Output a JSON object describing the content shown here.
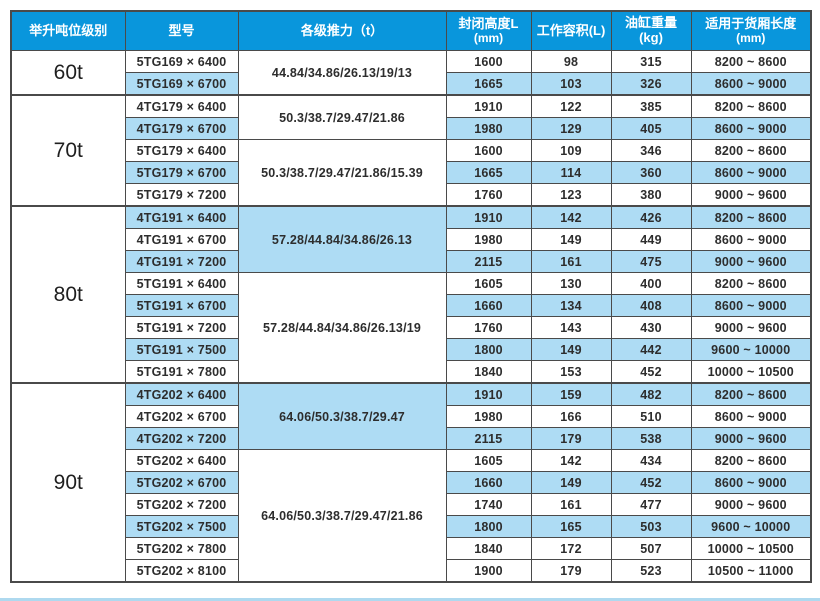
{
  "colors": {
    "header_bg": "#0996dc",
    "header_text": "#ffffff",
    "row_highlight_bg": "#aedcf4",
    "grid_border": "#4a4a4a",
    "body_text": "#2d2d2d",
    "bottom_rule": "#aed9ef"
  },
  "table": {
    "headers": [
      {
        "line1": "举升吨位级别",
        "line2": ""
      },
      {
        "line1": "型号",
        "line2": ""
      },
      {
        "line1": "各级推力（t）",
        "line2": ""
      },
      {
        "line1": "封闭高度L",
        "line2": "(mm)"
      },
      {
        "line1": "工作容积(L)",
        "line2": ""
      },
      {
        "line1": "油缸重量(kg)",
        "line2": ""
      },
      {
        "line1": "适用于货厢长度",
        "line2": "(mm)"
      }
    ],
    "sections": [
      {
        "tonnage": "60t",
        "groups": [
          {
            "thrust": "44.84/34.86/26.13/19/13",
            "thrust_highlight": false,
            "rows": [
              {
                "model": "5TG169 × 6400",
                "closed_height": "1600",
                "working_volume": "98",
                "cylinder_weight": "315",
                "box_length": "8200 ~ 8600",
                "highlight": false
              },
              {
                "model": "5TG169 × 6700",
                "closed_height": "1665",
                "working_volume": "103",
                "cylinder_weight": "326",
                "box_length": "8600 ~ 9000",
                "highlight": true
              }
            ]
          }
        ]
      },
      {
        "tonnage": "70t",
        "groups": [
          {
            "thrust": "50.3/38.7/29.47/21.86",
            "thrust_highlight": false,
            "rows": [
              {
                "model": "4TG179 × 6400",
                "closed_height": "1910",
                "working_volume": "122",
                "cylinder_weight": "385",
                "box_length": "8200 ~ 8600",
                "highlight": false
              },
              {
                "model": "4TG179 × 6700",
                "closed_height": "1980",
                "working_volume": "129",
                "cylinder_weight": "405",
                "box_length": "8600 ~ 9000",
                "highlight": true
              }
            ]
          },
          {
            "thrust": "50.3/38.7/29.47/21.86/15.39",
            "thrust_highlight": false,
            "rows": [
              {
                "model": "5TG179 × 6400",
                "closed_height": "1600",
                "working_volume": "109",
                "cylinder_weight": "346",
                "box_length": "8200 ~ 8600",
                "highlight": false
              },
              {
                "model": "5TG179 × 6700",
                "closed_height": "1665",
                "working_volume": "114",
                "cylinder_weight": "360",
                "box_length": "8600 ~ 9000",
                "highlight": true
              },
              {
                "model": "5TG179 × 7200",
                "closed_height": "1760",
                "working_volume": "123",
                "cylinder_weight": "380",
                "box_length": "9000 ~ 9600",
                "highlight": false
              }
            ]
          }
        ]
      },
      {
        "tonnage": "80t",
        "groups": [
          {
            "thrust": "57.28/44.84/34.86/26.13",
            "thrust_highlight": true,
            "rows": [
              {
                "model": "4TG191 × 6400",
                "closed_height": "1910",
                "working_volume": "142",
                "cylinder_weight": "426",
                "box_length": "8200 ~ 8600",
                "highlight": true
              },
              {
                "model": "4TG191 × 6700",
                "closed_height": "1980",
                "working_volume": "149",
                "cylinder_weight": "449",
                "box_length": "8600 ~ 9000",
                "highlight": false
              },
              {
                "model": "4TG191 × 7200",
                "closed_height": "2115",
                "working_volume": "161",
                "cylinder_weight": "475",
                "box_length": "9000 ~ 9600",
                "highlight": true
              }
            ]
          },
          {
            "thrust": "57.28/44.84/34.86/26.13/19",
            "thrust_highlight": false,
            "rows": [
              {
                "model": "5TG191 × 6400",
                "closed_height": "1605",
                "working_volume": "130",
                "cylinder_weight": "400",
                "box_length": "8200 ~ 8600",
                "highlight": false
              },
              {
                "model": "5TG191 × 6700",
                "closed_height": "1660",
                "working_volume": "134",
                "cylinder_weight": "408",
                "box_length": "8600 ~ 9000",
                "highlight": true
              },
              {
                "model": "5TG191 × 7200",
                "closed_height": "1760",
                "working_volume": "143",
                "cylinder_weight": "430",
                "box_length": "9000 ~ 9600",
                "highlight": false
              },
              {
                "model": "5TG191 × 7500",
                "closed_height": "1800",
                "working_volume": "149",
                "cylinder_weight": "442",
                "box_length": "9600 ~ 10000",
                "highlight": true
              },
              {
                "model": "5TG191 × 7800",
                "closed_height": "1840",
                "working_volume": "153",
                "cylinder_weight": "452",
                "box_length": "10000 ~ 10500",
                "highlight": false
              }
            ]
          }
        ]
      },
      {
        "tonnage": "90t",
        "groups": [
          {
            "thrust": "64.06/50.3/38.7/29.47",
            "thrust_highlight": true,
            "rows": [
              {
                "model": "4TG202 × 6400",
                "closed_height": "1910",
                "working_volume": "159",
                "cylinder_weight": "482",
                "box_length": "8200 ~ 8600",
                "highlight": true
              },
              {
                "model": "4TG202 × 6700",
                "closed_height": "1980",
                "working_volume": "166",
                "cylinder_weight": "510",
                "box_length": "8600 ~ 9000",
                "highlight": false
              },
              {
                "model": "4TG202 × 7200",
                "closed_height": "2115",
                "working_volume": "179",
                "cylinder_weight": "538",
                "box_length": "9000 ~ 9600",
                "highlight": true
              }
            ]
          },
          {
            "thrust": "64.06/50.3/38.7/29.47/21.86",
            "thrust_highlight": false,
            "rows": [
              {
                "model": "5TG202 × 6400",
                "closed_height": "1605",
                "working_volume": "142",
                "cylinder_weight": "434",
                "box_length": "8200 ~ 8600",
                "highlight": false
              },
              {
                "model": "5TG202 × 6700",
                "closed_height": "1660",
                "working_volume": "149",
                "cylinder_weight": "452",
                "box_length": "8600 ~ 9000",
                "highlight": true
              },
              {
                "model": "5TG202 × 7200",
                "closed_height": "1740",
                "working_volume": "161",
                "cylinder_weight": "477",
                "box_length": "9000 ~ 9600",
                "highlight": false
              },
              {
                "model": "5TG202 × 7500",
                "closed_height": "1800",
                "working_volume": "165",
                "cylinder_weight": "503",
                "box_length": "9600 ~ 10000",
                "highlight": true
              },
              {
                "model": "5TG202 × 7800",
                "closed_height": "1840",
                "working_volume": "172",
                "cylinder_weight": "507",
                "box_length": "10000 ~ 10500",
                "highlight": false
              },
              {
                "model": "5TG202 × 8100",
                "closed_height": "1900",
                "working_volume": "179",
                "cylinder_weight": "523",
                "box_length": "10500 ~ 11000",
                "highlight": false
              }
            ]
          }
        ]
      }
    ]
  }
}
